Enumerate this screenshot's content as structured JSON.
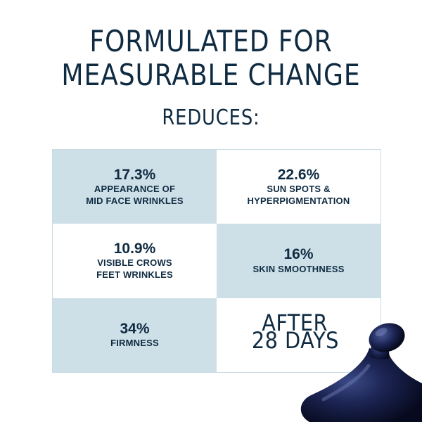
{
  "headline": {
    "line1": "FORMULATED FOR",
    "line2": "MEASURABLE CHANGE"
  },
  "subhead": "REDUCES:",
  "stats": [
    {
      "percent": "17.3%",
      "line1": "APPEARANCE OF",
      "line2": "MID FACE WRINKLES"
    },
    {
      "percent": "22.6%",
      "line1": "SUN SPOTS &",
      "line2": "HYPERPIGMENTATION"
    },
    {
      "percent": "10.9%",
      "line1": "VISIBLE CROWS",
      "line2": "FEET WRINKLES"
    },
    {
      "percent": "16%",
      "line1": "SKIN SMOOTHNESS",
      "line2": ""
    },
    {
      "percent": "34%",
      "line1": "FIRMNESS",
      "line2": ""
    }
  ],
  "after": {
    "line1": "AFTER",
    "line2": "28 DAYS"
  },
  "colors": {
    "navy": "#0f2b42",
    "shaded_cell": "#cde0e7",
    "background": "#ffffff"
  }
}
